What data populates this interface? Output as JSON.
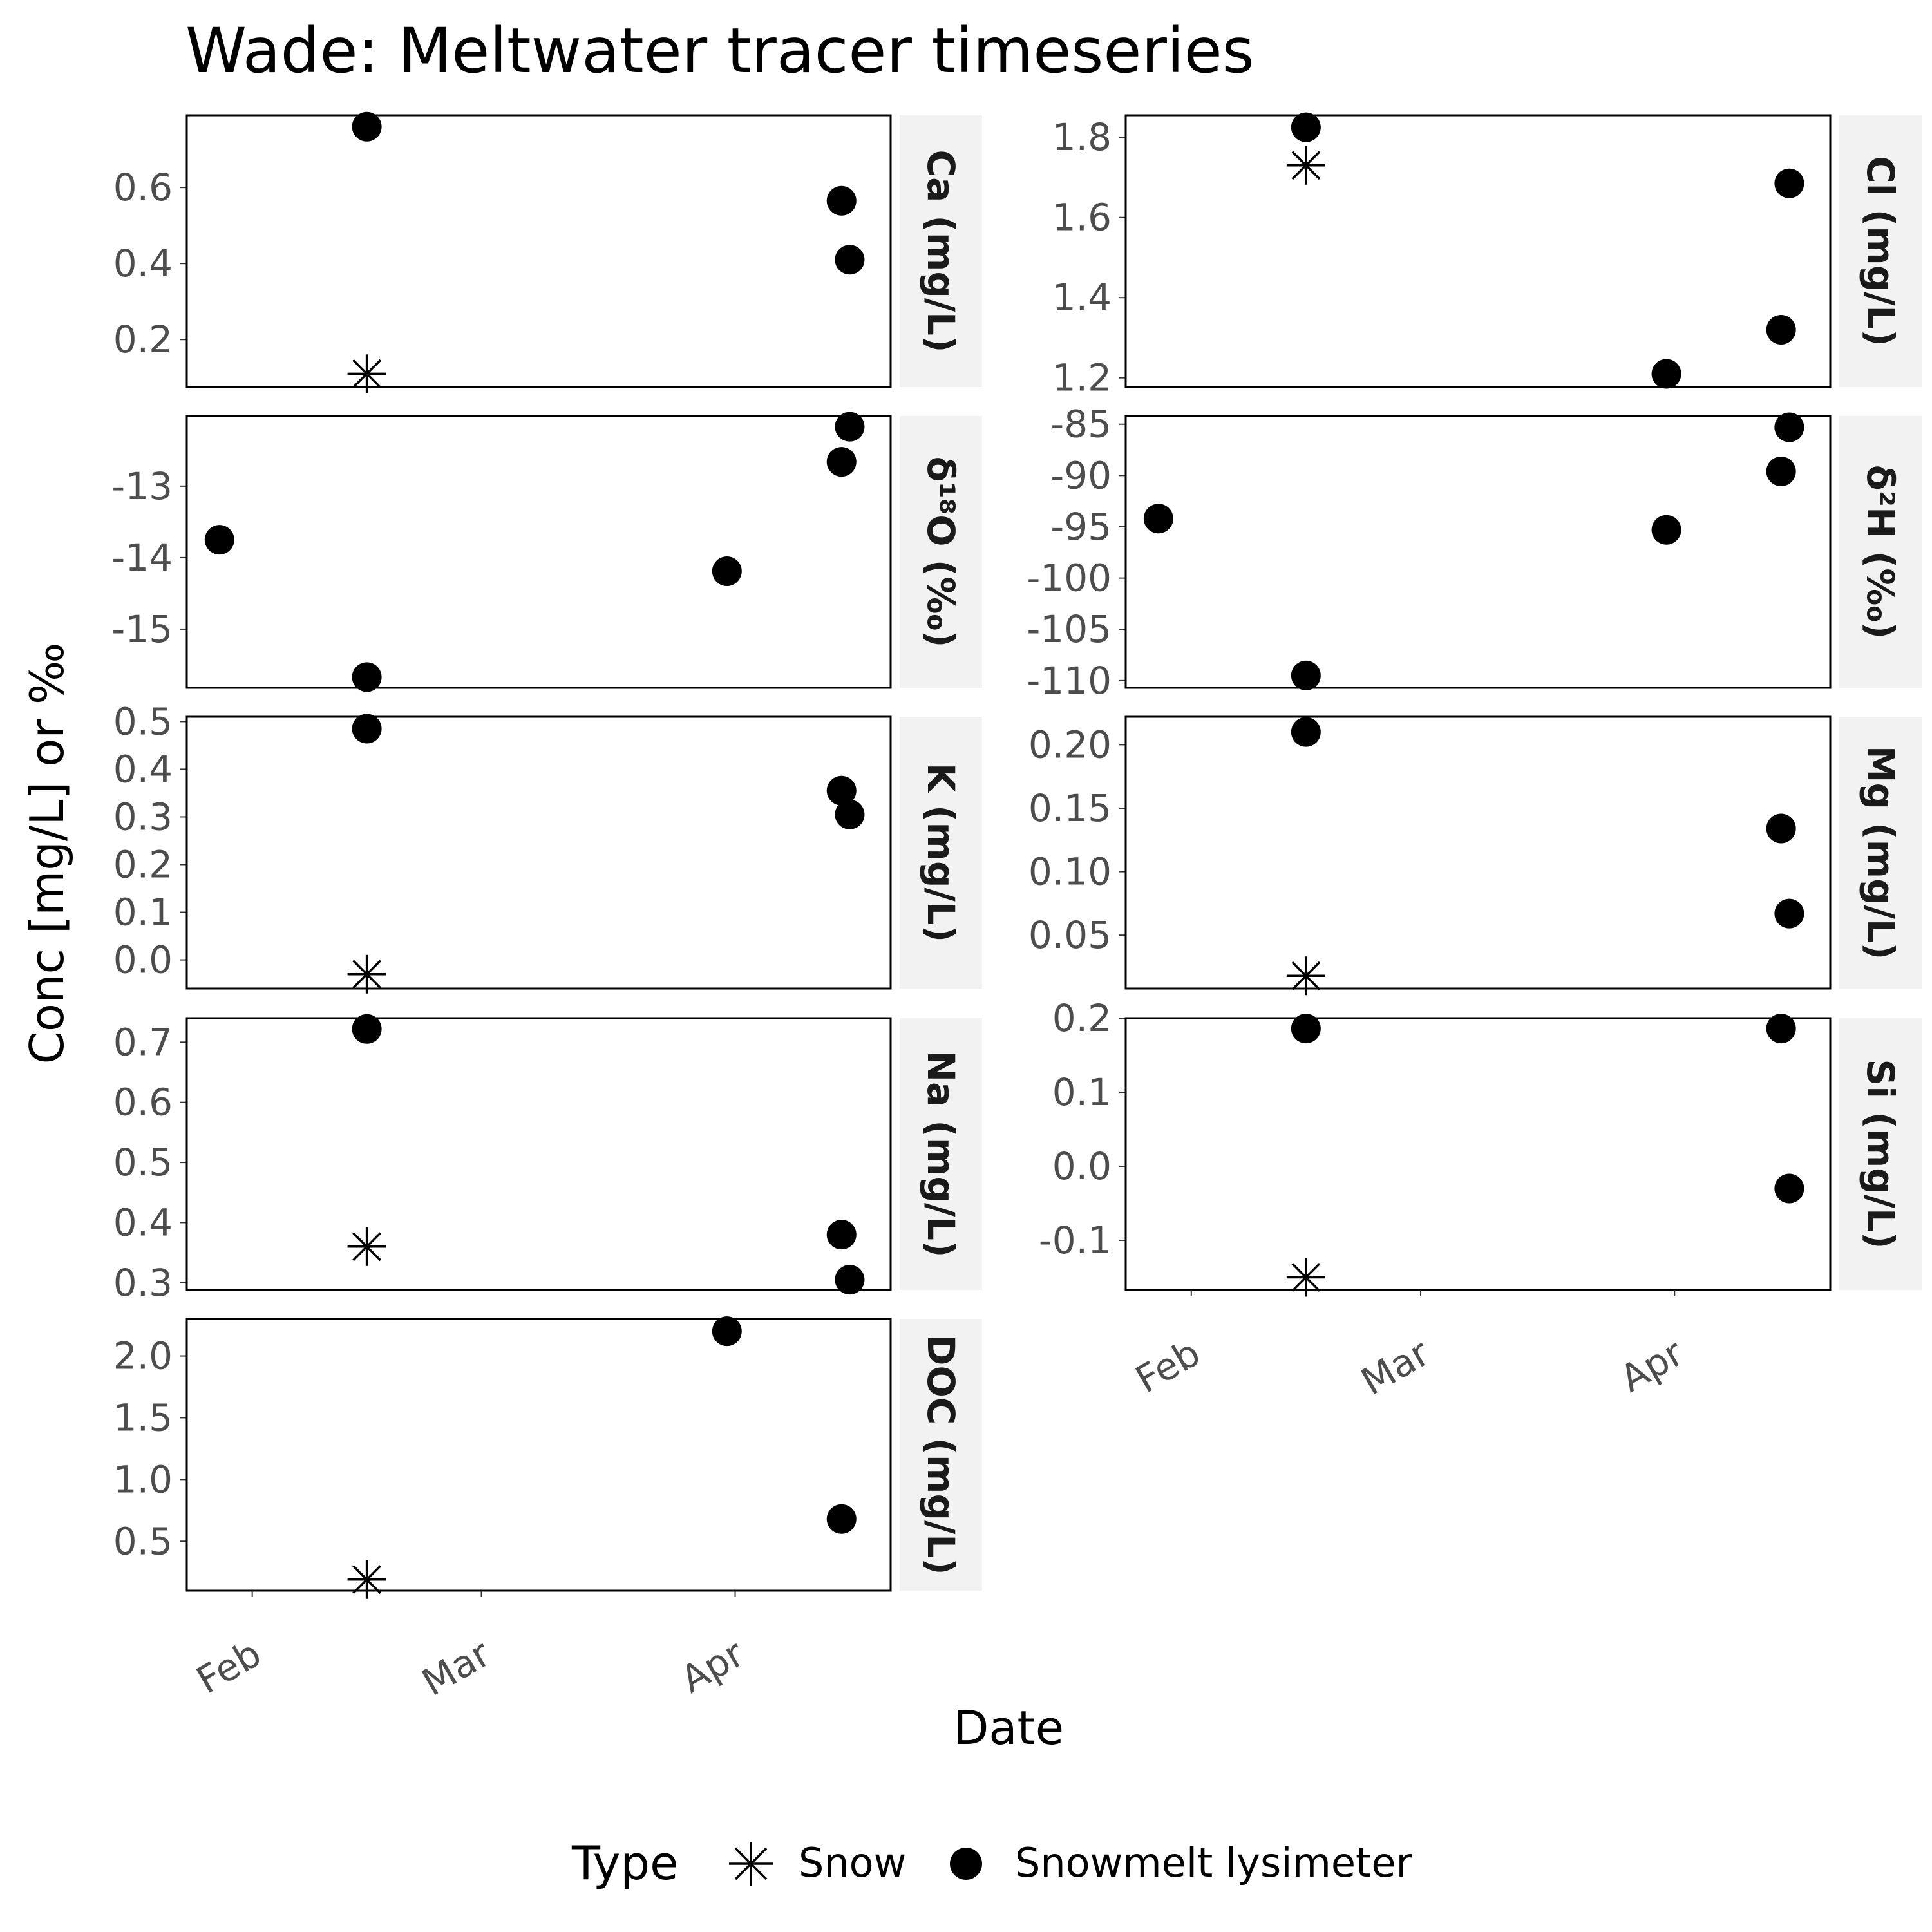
{
  "chart_data": {
    "type": "scatter",
    "title": "Wade: Meltwater tracer timeseries",
    "xlabel": "Date",
    "ylabel": "Conc [mg/L] or ‰",
    "x_type": "date",
    "xlim": [
      "2023-01-24",
      "2023-04-20"
    ],
    "xticks": [
      {
        "date": "2023-02-01",
        "label": "Feb"
      },
      {
        "date": "2023-03-01",
        "label": "Mar"
      },
      {
        "date": "2023-04-01",
        "label": "Apr"
      }
    ],
    "legend": {
      "title": "Type",
      "position": "bottom",
      "entries": [
        {
          "name": "Snow",
          "shape": "asterisk"
        },
        {
          "name": "Snowmelt lysimeter",
          "shape": "circle"
        }
      ]
    },
    "facets": [
      {
        "label": "Ca (mg/L)",
        "ylim": [
          0.075,
          0.79
        ],
        "yticks": [
          {
            "v": 0.2,
            "t": "0.2"
          },
          {
            "v": 0.4,
            "t": "0.4"
          },
          {
            "v": 0.6,
            "t": "0.6"
          }
        ],
        "points": [
          {
            "type": "Snow",
            "date": "2023-02-15",
            "y": 0.11
          },
          {
            "type": "Snowmelt lysimeter",
            "date": "2023-02-15",
            "y": 0.76
          },
          {
            "type": "Snowmelt lysimeter",
            "date": "2023-04-14",
            "y": 0.565
          },
          {
            "type": "Snowmelt lysimeter",
            "date": "2023-04-15",
            "y": 0.41
          }
        ]
      },
      {
        "label": "Cl (mg/L)",
        "ylim": [
          1.177,
          1.855
        ],
        "yticks": [
          {
            "v": 1.2,
            "t": "1.2"
          },
          {
            "v": 1.4,
            "t": "1.4"
          },
          {
            "v": 1.6,
            "t": "1.6"
          },
          {
            "v": 1.8,
            "t": "1.8"
          }
        ],
        "points": [
          {
            "type": "Snow",
            "date": "2023-02-15",
            "y": 1.73
          },
          {
            "type": "Snowmelt lysimeter",
            "date": "2023-02-15",
            "y": 1.825
          },
          {
            "type": "Snowmelt lysimeter",
            "date": "2023-03-31",
            "y": 1.21
          },
          {
            "type": "Snowmelt lysimeter",
            "date": "2023-04-14",
            "y": 1.32
          },
          {
            "type": "Snowmelt lysimeter",
            "date": "2023-04-15",
            "y": 1.685
          }
        ]
      },
      {
        "label": "δ¹⁸O (‰)",
        "ylim": [
          -15.82,
          -12.02
        ],
        "yticks": [
          {
            "v": -15,
            "t": "-15"
          },
          {
            "v": -14,
            "t": "-14"
          },
          {
            "v": -13,
            "t": "-13"
          }
        ],
        "points": [
          {
            "type": "Snowmelt lysimeter",
            "date": "2023-01-28",
            "y": -13.75
          },
          {
            "type": "Snowmelt lysimeter",
            "date": "2023-02-15",
            "y": -15.67
          },
          {
            "type": "Snowmelt lysimeter",
            "date": "2023-03-31",
            "y": -14.19
          },
          {
            "type": "Snowmelt lysimeter",
            "date": "2023-04-14",
            "y": -12.66
          },
          {
            "type": "Snowmelt lysimeter",
            "date": "2023-04-15",
            "y": -12.17
          }
        ]
      },
      {
        "label": "δ²H (‰)",
        "ylim": [
          -110.7,
          -84.2
        ],
        "yticks": [
          {
            "v": -110,
            "t": "-110"
          },
          {
            "v": -105,
            "t": "-105"
          },
          {
            "v": -100,
            "t": "-100"
          },
          {
            "v": -95,
            "t": "-95"
          },
          {
            "v": -90,
            "t": "-90"
          },
          {
            "v": -85,
            "t": "-85"
          }
        ],
        "points": [
          {
            "type": "Snowmelt lysimeter",
            "date": "2023-01-28",
            "y": -94.2
          },
          {
            "type": "Snowmelt lysimeter",
            "date": "2023-02-15",
            "y": -109.5
          },
          {
            "type": "Snowmelt lysimeter",
            "date": "2023-03-31",
            "y": -95.3
          },
          {
            "type": "Snowmelt lysimeter",
            "date": "2023-04-14",
            "y": -89.6
          },
          {
            "type": "Snowmelt lysimeter",
            "date": "2023-04-15",
            "y": -85.3
          }
        ]
      },
      {
        "label": "K (mg/L)",
        "ylim": [
          -0.06,
          0.51
        ],
        "yticks": [
          {
            "v": 0.0,
            "t": "0.0"
          },
          {
            "v": 0.1,
            "t": "0.1"
          },
          {
            "v": 0.2,
            "t": "0.2"
          },
          {
            "v": 0.3,
            "t": "0.3"
          },
          {
            "v": 0.4,
            "t": "0.4"
          },
          {
            "v": 0.5,
            "t": "0.5"
          }
        ],
        "points": [
          {
            "type": "Snow",
            "date": "2023-02-15",
            "y": -0.03
          },
          {
            "type": "Snowmelt lysimeter",
            "date": "2023-02-15",
            "y": 0.485
          },
          {
            "type": "Snowmelt lysimeter",
            "date": "2023-04-14",
            "y": 0.355
          },
          {
            "type": "Snowmelt lysimeter",
            "date": "2023-04-15",
            "y": 0.305
          }
        ]
      },
      {
        "label": "Mg (mg/L)",
        "ylim": [
          0.008,
          0.222
        ],
        "yticks": [
          {
            "v": 0.05,
            "t": "0.05"
          },
          {
            "v": 0.1,
            "t": "0.10"
          },
          {
            "v": 0.15,
            "t": "0.15"
          },
          {
            "v": 0.2,
            "t": "0.20"
          }
        ],
        "points": [
          {
            "type": "Snow",
            "date": "2023-02-15",
            "y": 0.018
          },
          {
            "type": "Snowmelt lysimeter",
            "date": "2023-02-15",
            "y": 0.21
          },
          {
            "type": "Snowmelt lysimeter",
            "date": "2023-04-14",
            "y": 0.134
          },
          {
            "type": "Snowmelt lysimeter",
            "date": "2023-04-15",
            "y": 0.067
          }
        ]
      },
      {
        "label": "Na (mg/L)",
        "ylim": [
          0.288,
          0.74
        ],
        "yticks": [
          {
            "v": 0.3,
            "t": "0.3"
          },
          {
            "v": 0.4,
            "t": "0.4"
          },
          {
            "v": 0.5,
            "t": "0.5"
          },
          {
            "v": 0.6,
            "t": "0.6"
          },
          {
            "v": 0.7,
            "t": "0.7"
          }
        ],
        "points": [
          {
            "type": "Snow",
            "date": "2023-02-15",
            "y": 0.36
          },
          {
            "type": "Snowmelt lysimeter",
            "date": "2023-02-15",
            "y": 0.722
          },
          {
            "type": "Snowmelt lysimeter",
            "date": "2023-04-14",
            "y": 0.38
          },
          {
            "type": "Snowmelt lysimeter",
            "date": "2023-04-15",
            "y": 0.305
          }
        ]
      },
      {
        "label": "Si (mg/L)",
        "ylim": [
          -0.167,
          0.2
        ],
        "yticks": [
          {
            "v": -0.1,
            "t": "-0.1"
          },
          {
            "v": 0.0,
            "t": "0.0"
          },
          {
            "v": 0.1,
            "t": "0.1"
          },
          {
            "v": 0.2,
            "t": "0.2"
          }
        ],
        "points": [
          {
            "type": "Snow",
            "date": "2023-02-15",
            "y": -0.15
          },
          {
            "type": "Snowmelt lysimeter",
            "date": "2023-02-15",
            "y": 0.186
          },
          {
            "type": "Snowmelt lysimeter",
            "date": "2023-04-14",
            "y": 0.186
          },
          {
            "type": "Snowmelt lysimeter",
            "date": "2023-04-15",
            "y": -0.03
          }
        ]
      },
      {
        "label": "DOC (mg/L)",
        "ylim": [
          0.1,
          2.3
        ],
        "yticks": [
          {
            "v": 0.5,
            "t": "0.5"
          },
          {
            "v": 1.0,
            "t": "1.0"
          },
          {
            "v": 1.5,
            "t": "1.5"
          },
          {
            "v": 2.0,
            "t": "2.0"
          }
        ],
        "points": [
          {
            "type": "Snow",
            "date": "2023-02-15",
            "y": 0.19
          },
          {
            "type": "Snowmelt lysimeter",
            "date": "2023-03-31",
            "y": 2.2
          },
          {
            "type": "Snowmelt lysimeter",
            "date": "2023-04-14",
            "y": 0.68
          }
        ]
      }
    ]
  }
}
